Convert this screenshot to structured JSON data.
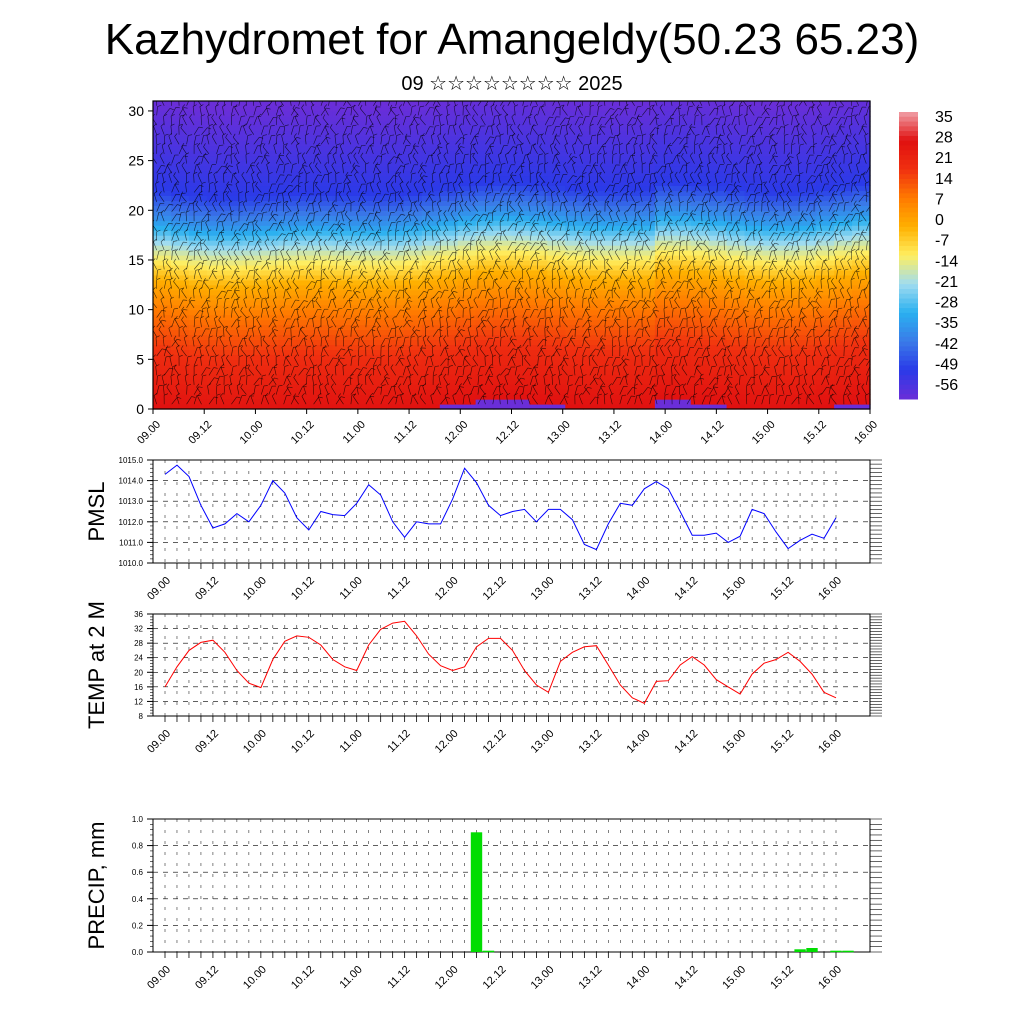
{
  "header": {
    "title": "Kazhydromet for Amangeldy(50.23 65.23)",
    "subtitle": "09 ☆☆☆☆☆☆☆☆ 2025"
  },
  "colors": {
    "pressure_line": "#0000ff",
    "temperature_line": "#ff0000",
    "precip_bar": "#00dd00",
    "grid": "#000000",
    "palette": [
      "#6a2ed8",
      "#2a3ae8",
      "#3a7ae8",
      "#2ab0f0",
      "#a0dcf0",
      "#ffee60",
      "#ffb000",
      "#ff7a00",
      "#f03010",
      "#e01010",
      "#f0a0a8"
    ]
  },
  "chart_data": [
    {
      "type": "heatmap",
      "title": "",
      "xlabel": "",
      "ylabel": "",
      "x_tick_labels": [
        "09.00",
        "09.12",
        "10.00",
        "10.12",
        "11.00",
        "11.12",
        "12.00",
        "12.12",
        "13.00",
        "13.12",
        "14.00",
        "14.12",
        "15.00",
        "15.12",
        "16.00"
      ],
      "ylim": [
        0,
        31
      ],
      "y_ticks": [
        0,
        5,
        10,
        15,
        20,
        25,
        30
      ],
      "colorbar_labels": [
        "35",
        "28",
        "21",
        "14",
        "7",
        "0",
        "-7",
        "-14",
        "-21",
        "-28",
        "-35",
        "-42",
        "-49",
        "-56"
      ],
      "value_levels": [
        {
          "level": 0,
          "value": 30
        },
        {
          "level": 5,
          "value": 22
        },
        {
          "level": 10,
          "value": 10
        },
        {
          "level": 13,
          "value": 0
        },
        {
          "level": 16,
          "value": -15
        },
        {
          "level": 19,
          "value": -35
        },
        {
          "level": 22,
          "value": -50
        },
        {
          "level": 31,
          "value": -60
        }
      ],
      "overlay": "wind barbs"
    },
    {
      "type": "line",
      "title": "",
      "xlabel": "",
      "ylabel": "PMSL",
      "ylim": [
        1010.0,
        1015.0
      ],
      "y_tick_labels": [
        "1010.0",
        "1011.0",
        "1012.0",
        "1013.0",
        "1014.0",
        "1015.0"
      ],
      "x_tick_labels": [
        "09.00",
        "09.12",
        "10.00",
        "10.12",
        "11.00",
        "11.12",
        "12.00",
        "12.12",
        "13.00",
        "13.12",
        "14.00",
        "14.12",
        "15.00",
        "15.12",
        "16.00"
      ],
      "series": [
        {
          "values": [
            1014.3,
            1014.75,
            1014.2,
            1012.8,
            1011.7,
            1011.9,
            1012.4,
            1012.0,
            1012.8,
            1014.0,
            1013.4,
            1012.2,
            1011.6,
            1012.5,
            1012.35,
            1012.3,
            1012.9,
            1013.8,
            1013.3,
            1012.0,
            1011.25,
            1012.0,
            1011.9,
            1011.9,
            1013.1,
            1014.6,
            1013.9,
            1012.8,
            1012.3,
            1012.5,
            1012.6,
            1012.0,
            1012.6,
            1012.6,
            1012.1,
            1010.9,
            1010.65,
            1011.9,
            1012.9,
            1012.8,
            1013.6,
            1013.95,
            1013.6,
            1012.5,
            1011.35,
            1011.35,
            1011.45,
            1011.0,
            1011.3,
            1012.6,
            1012.4,
            1011.5,
            1010.7,
            1011.1,
            1011.4,
            1011.2,
            1012.2
          ]
        }
      ]
    },
    {
      "type": "line",
      "title": "",
      "xlabel": "",
      "ylabel": "TEMP at 2 M",
      "ylim": [
        8,
        36
      ],
      "y_tick_labels": [
        "8",
        "12",
        "16",
        "20",
        "24",
        "28",
        "32",
        "36"
      ],
      "x_tick_labels": [
        "09.00",
        "09.12",
        "10.00",
        "10.12",
        "11.00",
        "11.12",
        "12.00",
        "12.12",
        "13.00",
        "13.12",
        "14.00",
        "14.12",
        "15.00",
        "15.12",
        "16.00"
      ],
      "series": [
        {
          "values": [
            16.0,
            21.5,
            26.0,
            28.2,
            28.8,
            25.5,
            20.5,
            17.0,
            15.8,
            23.5,
            28.5,
            30.0,
            29.6,
            27.5,
            23.5,
            21.5,
            20.5,
            27.5,
            31.8,
            33.5,
            34.0,
            30.0,
            25.0,
            21.8,
            20.5,
            21.5,
            27.0,
            29.3,
            29.3,
            26.0,
            20.5,
            16.5,
            14.5,
            23.0,
            25.5,
            27.0,
            27.3,
            22.0,
            16.5,
            13.0,
            11.5,
            17.5,
            17.7,
            22.0,
            24.3,
            22.0,
            18.0,
            16.0,
            14.0,
            19.5,
            22.5,
            23.5,
            25.5,
            23.0,
            19.5,
            14.5,
            13.0
          ]
        }
      ]
    },
    {
      "type": "bar",
      "title": "",
      "xlabel": "",
      "ylabel": "PRECIP, mm",
      "ylim": [
        0.0,
        1.0
      ],
      "y_tick_labels": [
        "0.0",
        "0.2",
        "0.4",
        "0.6",
        "0.8",
        "1.0"
      ],
      "x_tick_labels": [
        "09.00",
        "09.12",
        "10.00",
        "10.12",
        "11.00",
        "11.12",
        "12.00",
        "12.12",
        "13.00",
        "13.12",
        "14.00",
        "14.12",
        "15.00",
        "15.12",
        "16.00"
      ],
      "bars": [
        {
          "step": 26,
          "value": 0.9
        },
        {
          "step": 27,
          "value": 0.01
        },
        {
          "step": 53,
          "value": 0.02
        },
        {
          "step": 54,
          "value": 0.03
        },
        {
          "step": 56,
          "value": 0.01
        },
        {
          "step": 57,
          "value": 0.01
        }
      ]
    }
  ]
}
